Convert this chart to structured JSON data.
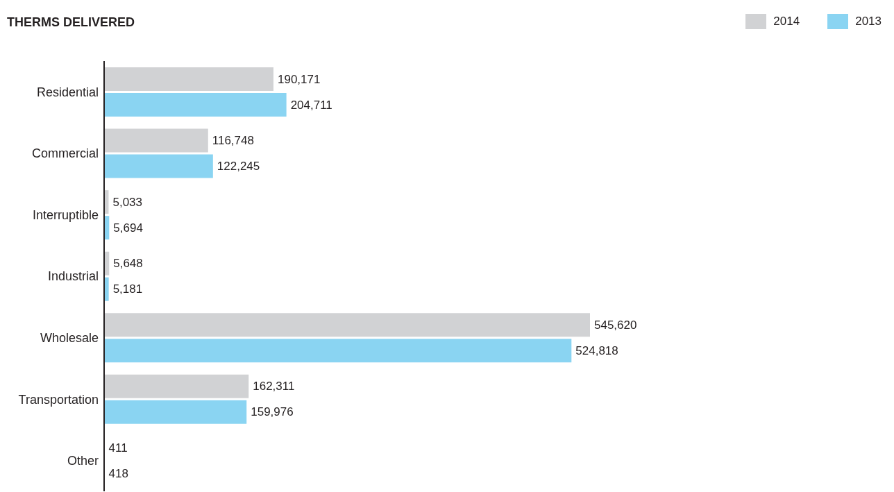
{
  "chart_data": {
    "type": "bar",
    "orientation": "horizontal",
    "title": "THERMS DELIVERED",
    "categories": [
      "Residential",
      "Commercial",
      "Interruptible",
      "Industrial",
      "Wholesale",
      "Transportation",
      "Other"
    ],
    "series": [
      {
        "name": "2014",
        "color": "#d1d2d4",
        "values": [
          190171,
          116748,
          5033,
          5648,
          545620,
          162311,
          411
        ],
        "value_labels": [
          "190,171",
          "116,748",
          "5,033",
          "5,648",
          "545,620",
          "162,311",
          "411"
        ]
      },
      {
        "name": "2013",
        "color": "#8ad4f2",
        "values": [
          204711,
          122245,
          5694,
          5181,
          524818,
          159976,
          418
        ],
        "value_labels": [
          "204,711",
          "122,245",
          "5,694",
          "5,181",
          "524,818",
          "159,976",
          "418"
        ]
      }
    ],
    "legend": "top right",
    "grid": false
  }
}
